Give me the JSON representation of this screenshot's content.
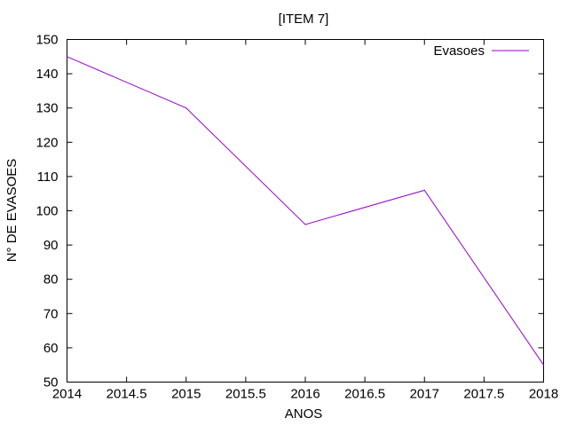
{
  "chart_data": {
    "type": "line",
    "title": "[ITEM 7]",
    "xlabel": "ANOS",
    "ylabel": "N° DE EVASOES",
    "xlim": [
      2014,
      2018
    ],
    "ylim": [
      50,
      150
    ],
    "xticks": [
      "2014",
      "2014.5",
      "2015",
      "2015.5",
      "2016",
      "2016.5",
      "2017",
      "2017.5",
      "2018"
    ],
    "yticks": [
      "50",
      "60",
      "70",
      "80",
      "90",
      "100",
      "110",
      "120",
      "130",
      "140",
      "150"
    ],
    "legend_position": "top-right",
    "grid": false,
    "series": [
      {
        "name": "Evasoes",
        "color": "#9400d3",
        "x": [
          2014,
          2015,
          2016,
          2017,
          2018
        ],
        "y": [
          145,
          130,
          96,
          106,
          55
        ]
      }
    ]
  }
}
